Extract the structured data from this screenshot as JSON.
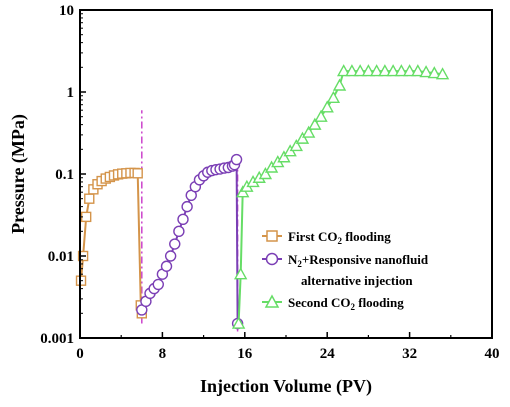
{
  "chart_data": {
    "type": "line",
    "xlabel": "Injection Volume (PV)",
    "ylabel": "Pressure (MPa)",
    "x_scale": "linear",
    "y_scale": "log",
    "xlim": [
      0,
      40
    ],
    "ylim": [
      0.001,
      10
    ],
    "x_ticks": [
      "0",
      "8",
      "16",
      "24",
      "32",
      "40"
    ],
    "y_ticks": [
      "0.001",
      "0.01",
      "0.1",
      "1",
      "10"
    ],
    "grid": false,
    "legend_position": "lower-right",
    "legend": {
      "first": "First CO",
      "first_sub": "2",
      "first_tail": " flooding",
      "second_line1_pre": "N",
      "second_line1_sub": "2",
      "second_line1_tail": "+Responsive  nanofluid",
      "second_line2": "alternative injection",
      "third": "Second CO",
      "third_sub": "2",
      "third_tail": " flooding"
    },
    "series": [
      {
        "key": "first",
        "marker": "square",
        "color": "#d4944a",
        "points": [
          [
            0.1,
            0.005
          ],
          [
            0.3,
            0.01
          ],
          [
            0.6,
            0.03
          ],
          [
            0.9,
            0.05
          ],
          [
            1.3,
            0.065
          ],
          [
            1.7,
            0.075
          ],
          [
            2.1,
            0.082
          ],
          [
            2.5,
            0.088
          ],
          [
            2.9,
            0.092
          ],
          [
            3.3,
            0.096
          ],
          [
            3.7,
            0.099
          ],
          [
            4.1,
            0.101
          ],
          [
            4.5,
            0.102
          ],
          [
            4.9,
            0.103
          ],
          [
            5.3,
            0.103
          ],
          [
            5.6,
            0.102
          ],
          [
            5.9,
            0.0025
          ],
          [
            6.0,
            0.002
          ]
        ]
      },
      {
        "key": "second",
        "marker": "circle",
        "color": "#7b3fb5",
        "points": [
          [
            6.0,
            0.0022
          ],
          [
            6.4,
            0.0028
          ],
          [
            6.8,
            0.0035
          ],
          [
            7.2,
            0.004
          ],
          [
            7.6,
            0.0045
          ],
          [
            8.0,
            0.006
          ],
          [
            8.4,
            0.0075
          ],
          [
            8.8,
            0.01
          ],
          [
            9.2,
            0.014
          ],
          [
            9.6,
            0.02
          ],
          [
            10.0,
            0.028
          ],
          [
            10.4,
            0.04
          ],
          [
            10.8,
            0.055
          ],
          [
            11.2,
            0.07
          ],
          [
            11.6,
            0.085
          ],
          [
            12.0,
            0.095
          ],
          [
            12.4,
            0.105
          ],
          [
            12.8,
            0.11
          ],
          [
            13.2,
            0.113
          ],
          [
            13.6,
            0.115
          ],
          [
            14.0,
            0.118
          ],
          [
            14.4,
            0.12
          ],
          [
            14.8,
            0.125
          ],
          [
            15.0,
            0.13
          ],
          [
            15.2,
            0.15
          ],
          [
            15.3,
            0.0015
          ]
        ]
      },
      {
        "key": "third",
        "marker": "triangle",
        "color": "#66dd66",
        "points": [
          [
            15.4,
            0.0015
          ],
          [
            15.6,
            0.006
          ],
          [
            15.8,
            0.06
          ],
          [
            16.2,
            0.07
          ],
          [
            16.8,
            0.08
          ],
          [
            17.4,
            0.09
          ],
          [
            18.0,
            0.1
          ],
          [
            18.6,
            0.12
          ],
          [
            19.2,
            0.14
          ],
          [
            19.8,
            0.16
          ],
          [
            20.4,
            0.19
          ],
          [
            21.0,
            0.22
          ],
          [
            21.6,
            0.27
          ],
          [
            22.2,
            0.32
          ],
          [
            22.8,
            0.4
          ],
          [
            23.4,
            0.5
          ],
          [
            24.0,
            0.65
          ],
          [
            24.6,
            0.85
          ],
          [
            25.2,
            1.2
          ],
          [
            25.6,
            1.8
          ],
          [
            26.4,
            1.8
          ],
          [
            27.2,
            1.8
          ],
          [
            28.0,
            1.8
          ],
          [
            28.8,
            1.8
          ],
          [
            29.6,
            1.8
          ],
          [
            30.4,
            1.8
          ],
          [
            31.2,
            1.8
          ],
          [
            32.0,
            1.8
          ],
          [
            32.8,
            1.8
          ],
          [
            33.6,
            1.75
          ],
          [
            34.4,
            1.7
          ],
          [
            35.2,
            1.65
          ]
        ]
      }
    ],
    "reference_lines": [
      {
        "x": 6.0,
        "y_from": 0.0015,
        "y_to": 0.6,
        "color": "#cc44cc",
        "style": "dash-dot"
      },
      {
        "x": 15.3,
        "y_from": 0.0012,
        "y_to": 0.18,
        "color": "#cc44cc",
        "style": "dash-dot"
      }
    ]
  }
}
